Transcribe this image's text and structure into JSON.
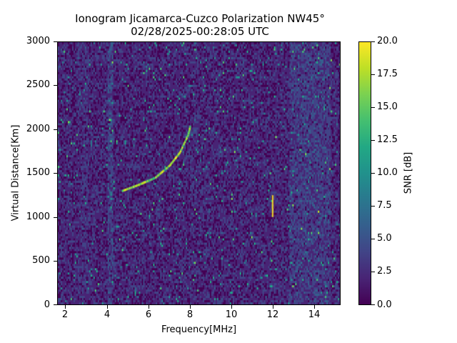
{
  "chart_data": {
    "type": "heatmap",
    "title": "Ionogram Jicamarca-Cuzco Polarization NW45°",
    "subtitle": "02/28/2025-00:28:05 UTC",
    "xlabel": "Frequency[MHz]",
    "ylabel": "Virtual Distance[Km]",
    "xlim": [
      1.6,
      15.3
    ],
    "ylim": [
      0,
      3000
    ],
    "xticks": [
      2,
      4,
      6,
      8,
      10,
      12,
      14
    ],
    "yticks": [
      0,
      500,
      1000,
      1500,
      2000,
      2500,
      3000
    ],
    "colorbar": {
      "label": "SNR [dB]",
      "range": [
        0.0,
        20.0
      ],
      "ticks": [
        "0.0",
        "2.5",
        "5.0",
        "7.5",
        "10.0",
        "12.5",
        "15.0",
        "17.5",
        "20.0"
      ],
      "colormap": "viridis"
    },
    "features": [
      {
        "name": "ionospheric-trace",
        "description": "curved echo trace rising from ~1300 km at 4.7 MHz to ~2000 km near 8 MHz",
        "points": [
          [
            4.7,
            1310
          ],
          [
            5.5,
            1380
          ],
          [
            6.3,
            1460
          ],
          [
            7.0,
            1600
          ],
          [
            7.5,
            1750
          ],
          [
            7.9,
            1950
          ],
          [
            8.0,
            2050
          ]
        ]
      },
      {
        "name": "vertical-line-4MHz",
        "description": "strong vertical band of noise near 4.0-4.2 MHz across all distances"
      },
      {
        "name": "vertical-spike-12MHz",
        "description": "bright short vertical segment at ~12 MHz around 1000-1250 km"
      },
      {
        "name": "noise-band-high-freq",
        "description": "elevated SNR noise columns between ~12.8 and 14.8 MHz"
      }
    ],
    "grid": false
  },
  "labels": {
    "title": "Ionogram Jicamarca-Cuzco Polarization NW45°",
    "subtitle": "02/28/2025-00:28:05 UTC",
    "xlabel": "Frequency[MHz]",
    "ylabel": "Virtual Distance[Km]",
    "clabel": "SNR [dB]",
    "xticks": [
      "2",
      "4",
      "6",
      "8",
      "10",
      "12",
      "14"
    ],
    "yticks": [
      "0",
      "500",
      "1000",
      "1500",
      "2000",
      "2500",
      "3000"
    ],
    "cticks": [
      "0.0",
      "2.5",
      "5.0",
      "7.5",
      "10.0",
      "12.5",
      "15.0",
      "17.5",
      "20.0"
    ]
  }
}
